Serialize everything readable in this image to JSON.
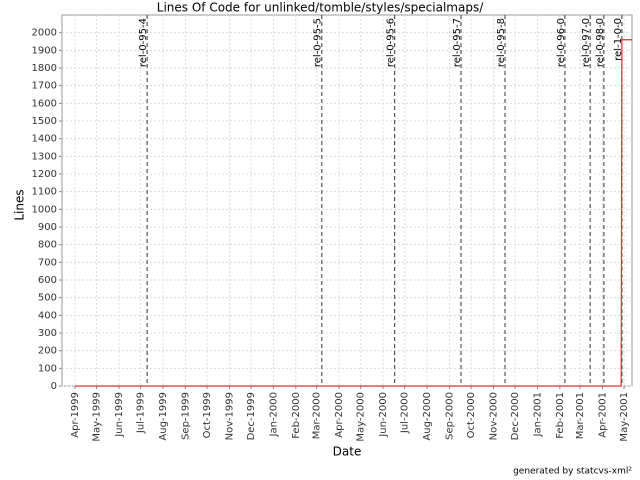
{
  "chart_data": {
    "type": "line",
    "title": "Lines Of Code for unlinked/tomble/styles/specialmaps/",
    "xlabel": "Date",
    "ylabel": "Lines",
    "footer": "generated by statcvs-xml²",
    "xlim": [
      "1999-03-14",
      "2001-05-12"
    ],
    "ylim": [
      0,
      2100
    ],
    "grid": true,
    "yticks": [
      0,
      100,
      200,
      300,
      400,
      500,
      600,
      700,
      800,
      900,
      1000,
      1100,
      1200,
      1300,
      1400,
      1500,
      1600,
      1700,
      1800,
      1900,
      2000
    ],
    "xticks": [
      {
        "value": "1999-04",
        "label": "Apr-1999"
      },
      {
        "value": "1999-05",
        "label": "May-1999"
      },
      {
        "value": "1999-06",
        "label": "Jun-1999"
      },
      {
        "value": "1999-07",
        "label": "Jul-1999"
      },
      {
        "value": "1999-08",
        "label": "Aug-1999"
      },
      {
        "value": "1999-09",
        "label": "Sep-1999"
      },
      {
        "value": "1999-10",
        "label": "Oct-1999"
      },
      {
        "value": "1999-11",
        "label": "Nov-1999"
      },
      {
        "value": "1999-12",
        "label": "Dec-1999"
      },
      {
        "value": "2000-01",
        "label": "Jan-2000"
      },
      {
        "value": "2000-02",
        "label": "Feb-2000"
      },
      {
        "value": "2000-03",
        "label": "Mar-2000"
      },
      {
        "value": "2000-04",
        "label": "Apr-2000"
      },
      {
        "value": "2000-05",
        "label": "May-2000"
      },
      {
        "value": "2000-06",
        "label": "Jun-2000"
      },
      {
        "value": "2000-07",
        "label": "Jul-2000"
      },
      {
        "value": "2000-08",
        "label": "Aug-2000"
      },
      {
        "value": "2000-09",
        "label": "Sep-2000"
      },
      {
        "value": "2000-10",
        "label": "Oct-2000"
      },
      {
        "value": "2000-11",
        "label": "Nov-2000"
      },
      {
        "value": "2000-12",
        "label": "Dec-2000"
      },
      {
        "value": "2001-01",
        "label": "Jan-2001"
      },
      {
        "value": "2001-02",
        "label": "Feb-2001"
      },
      {
        "value": "2001-03",
        "label": "Mar-2001"
      },
      {
        "value": "2001-04",
        "label": "Apr-2001"
      },
      {
        "value": "2001-05",
        "label": "May-2001"
      }
    ],
    "series": [
      {
        "color": "#e03030",
        "x": [
          "1999-04-01",
          "2001-04-27",
          "2001-04-28",
          "2001-05-12"
        ],
        "values": [
          0,
          0,
          1960,
          1960
        ]
      }
    ],
    "markers": [
      {
        "label": "rel-0-95-4",
        "x": "1999-07-10"
      },
      {
        "label": "rel-0-95-5",
        "x": "2000-03-08"
      },
      {
        "label": "rel-0-95-6",
        "x": "2000-06-17"
      },
      {
        "label": "rel-0-95-7",
        "x": "2000-09-17"
      },
      {
        "label": "rel-0-95-8",
        "x": "2000-11-17"
      },
      {
        "label": "rel-0-96-0",
        "x": "2001-02-08"
      },
      {
        "label": "rel-0-97-0",
        "x": "2001-03-15"
      },
      {
        "label": "rel-0-98-0",
        "x": "2001-04-03"
      },
      {
        "label": "rel-1-0-0",
        "x": "2001-04-28"
      }
    ]
  }
}
